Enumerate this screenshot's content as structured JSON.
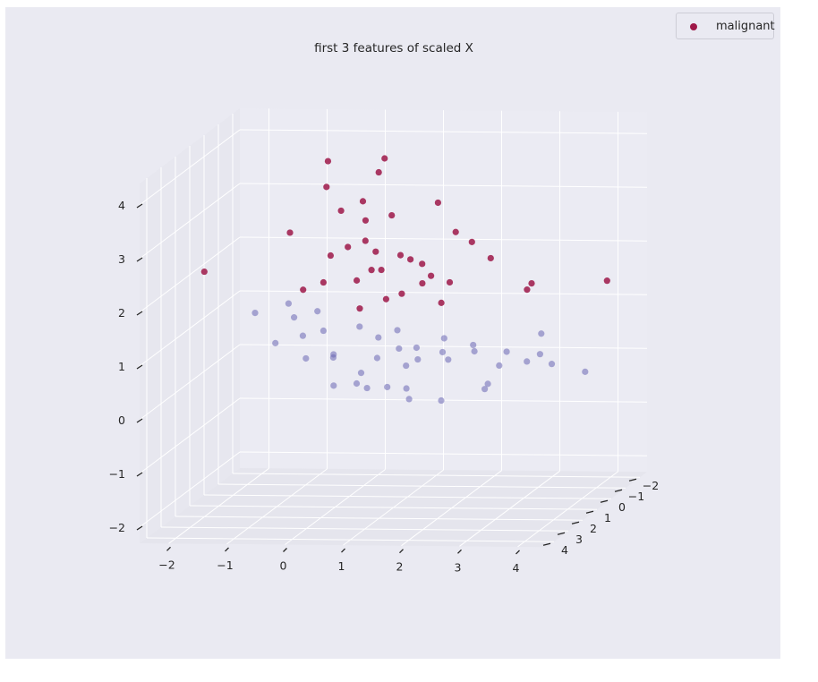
{
  "chart_data": {
    "type": "scatter",
    "projection": "3d",
    "title": "first 3 features of scaled X",
    "legend": {
      "placement": "top-right",
      "entries": [
        "malignant"
      ]
    },
    "grid": true,
    "x_ticks": [
      "−2",
      "−1",
      "0",
      "1",
      "2",
      "3",
      "4"
    ],
    "y_ticks": [
      "−2",
      "−1",
      "0",
      "1",
      "2",
      "3",
      "4"
    ],
    "z_ticks": [
      "−2",
      "−1",
      "0",
      "1",
      "2",
      "3",
      "4"
    ],
    "series": [
      {
        "name": "malignant",
        "color": "#9e1848",
        "points": [
          [
            -0.05,
            1.3,
            4.2
          ],
          [
            0.85,
            1.0,
            4.2
          ],
          [
            -0.1,
            1.2,
            3.7
          ],
          [
            0.7,
            0.8,
            3.9
          ],
          [
            0.6,
            1.5,
            3.5
          ],
          [
            0.2,
            1.4,
            3.3
          ],
          [
            -2.2,
            1.2,
            2.1
          ],
          [
            2.6,
            0.7,
            2.3
          ],
          [
            3.5,
            1.5,
            2.0
          ],
          [
            4.6,
            0.7,
            1.9
          ],
          [
            3.2,
            0.6,
            1.7
          ],
          [
            1.3,
            -0.9,
            3.0
          ],
          [
            0.35,
            0.3,
            2.9
          ],
          [
            -0.9,
            0.5,
            2.7
          ],
          [
            0.8,
            0.3,
            3.0
          ],
          [
            1.9,
            0.3,
            2.7
          ],
          [
            2.4,
            1.2,
            2.7
          ],
          [
            1.5,
            0.4,
            1.9
          ],
          [
            0.2,
            -0.3,
            2.4
          ],
          [
            -0.3,
            0.1,
            2.2
          ],
          [
            0.5,
            0.2,
            2.3
          ],
          [
            -0.2,
            -0.7,
            2.2
          ],
          [
            0.4,
            -0.6,
            1.8
          ],
          [
            1.0,
            0.5,
            2.3
          ],
          [
            1.2,
            -0.2,
            2.0
          ],
          [
            0.9,
            1.1,
            1.6
          ],
          [
            1.4,
            0.6,
            1.8
          ],
          [
            0.8,
            -0.4,
            1.4
          ],
          [
            -0.3,
            0.6,
            1.8
          ],
          [
            0.1,
            -0.1,
            1.7
          ],
          [
            0.6,
            0.9,
            2.1
          ],
          [
            -0.6,
            0.8,
            1.7
          ],
          [
            1.6,
            -0.5,
            1.6
          ],
          [
            1.8,
            0.9,
            1.5
          ],
          [
            0.3,
            0.5,
            1.3
          ],
          [
            0.9,
            -0.6,
            2.0
          ]
        ]
      },
      {
        "name": "",
        "color": "#6a66b2",
        "points": [
          [
            -1.5,
            0.5,
            1.2
          ],
          [
            -0.9,
            0.6,
            1.4
          ],
          [
            -1.2,
            0.3,
            0.6
          ],
          [
            -1.1,
            -0.6,
            0.9
          ],
          [
            -0.6,
            -0.2,
            1.1
          ],
          [
            -0.3,
            0.6,
            0.9
          ],
          [
            -0.2,
            0.3,
            0.4
          ],
          [
            0.1,
            -0.3,
            0.8
          ],
          [
            0.3,
            -0.8,
            0.5
          ],
          [
            0.5,
            0.1,
            0.3
          ],
          [
            0.7,
            -0.5,
            0.7
          ],
          [
            0.9,
            0.2,
            0.5
          ],
          [
            1.1,
            -0.3,
            0.2
          ],
          [
            1.3,
            0.6,
            0.6
          ],
          [
            1.6,
            0.0,
            0.4
          ],
          [
            1.8,
            0.7,
            0.8
          ],
          [
            2.0,
            -0.6,
            0.3
          ],
          [
            2.2,
            0.3,
            0.6
          ],
          [
            2.5,
            -0.3,
            0.1
          ],
          [
            2.8,
            0.4,
            0.5
          ],
          [
            3.0,
            -0.2,
            0.2
          ],
          [
            3.3,
            0.1,
            0.4
          ],
          [
            -0.5,
            -0.9,
            0.1
          ],
          [
            -0.1,
            0.7,
            -0.1
          ],
          [
            0.4,
            0.4,
            -0.2
          ],
          [
            0.8,
            -0.7,
            0.0
          ],
          [
            1.2,
            0.9,
            -0.1
          ],
          [
            1.5,
            -0.8,
            0.1
          ],
          [
            0.2,
            0.0,
            0.0
          ],
          [
            0.6,
            -0.2,
            -0.3
          ],
          [
            -0.7,
            0.2,
            0.3
          ],
          [
            -0.9,
            -0.4,
            0.6
          ],
          [
            2.6,
            0.9,
            0.0
          ],
          [
            3.1,
            -0.8,
            0.6
          ],
          [
            3.6,
            0.5,
            0.3
          ],
          [
            4.1,
            0.2,
            0.1
          ],
          [
            1.7,
            0.5,
            -0.4
          ],
          [
            1.0,
            -0.1,
            -0.5
          ],
          [
            0.0,
            -0.5,
            -0.3
          ],
          [
            2.3,
            -0.1,
            -0.3
          ]
        ]
      }
    ]
  }
}
